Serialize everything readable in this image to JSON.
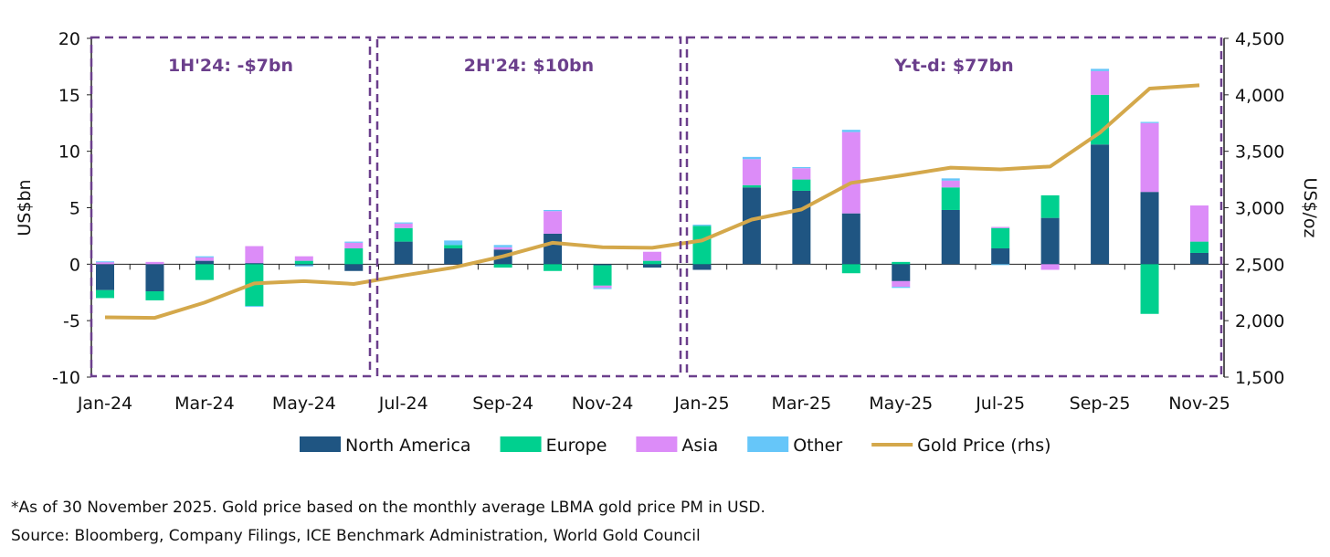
{
  "chart_data": {
    "type": "bar",
    "stacked": true,
    "categories": [
      "Jan-24",
      "Feb-24",
      "Mar-24",
      "Apr-24",
      "May-24",
      "Jun-24",
      "Jul-24",
      "Aug-24",
      "Sep-24",
      "Oct-24",
      "Nov-24",
      "Dec-24",
      "Jan-25",
      "Feb-25",
      "Mar-25",
      "Apr-25",
      "May-25",
      "Jun-25",
      "Jul-25",
      "Aug-25",
      "Sep-25",
      "Oct-25",
      "Nov-25"
    ],
    "x_tick_labels": [
      "Jan-24",
      "Mar-24",
      "May-24",
      "Jul-24",
      "Sep-24",
      "Nov-24",
      "Jan-25",
      "Mar-25",
      "May-25",
      "Jul-25",
      "Sep-25",
      "Nov-25"
    ],
    "series": [
      {
        "name": "North America",
        "color": "#1f5582",
        "values": [
          -2.3,
          -2.4,
          0.3,
          0.1,
          -0.1,
          -0.6,
          2.0,
          1.4,
          1.3,
          2.7,
          -0.1,
          -0.3,
          -0.5,
          6.8,
          6.5,
          4.5,
          -1.5,
          4.8,
          1.4,
          4.1,
          10.6,
          6.4,
          1.0
        ]
      },
      {
        "name": "Europe",
        "color": "#00d08f",
        "values": [
          -0.7,
          -0.8,
          -1.4,
          -3.7,
          0.3,
          1.4,
          1.2,
          0.3,
          -0.3,
          -0.6,
          -1.8,
          0.3,
          3.4,
          0.2,
          1.0,
          -0.8,
          0.2,
          2.0,
          1.8,
          2.0,
          4.4,
          -4.4,
          1.0
        ]
      },
      {
        "name": "Asia",
        "color": "#dc8cf8",
        "values": [
          0.2,
          0.2,
          0.3,
          1.5,
          0.4,
          0.5,
          0.4,
          0.0,
          0.2,
          2.0,
          -0.2,
          0.8,
          0.0,
          2.3,
          1.0,
          7.2,
          -0.5,
          0.6,
          0.1,
          -0.5,
          2.1,
          6.1,
          3.2
        ]
      },
      {
        "name": "Other",
        "color": "#66c6f9",
        "values": [
          0.05,
          0.0,
          0.1,
          -0.05,
          -0.1,
          0.1,
          0.1,
          0.4,
          0.2,
          0.1,
          -0.1,
          0.0,
          0.1,
          0.2,
          0.1,
          0.2,
          -0.1,
          0.2,
          -0.05,
          0.0,
          0.2,
          0.1,
          0.0
        ]
      }
    ],
    "line_series": {
      "name": "Gold Price (rhs)",
      "color": "#d4a84b",
      "axis": "right",
      "values": [
        2030,
        2025,
        2160,
        2330,
        2350,
        2325,
        2400,
        2470,
        2570,
        2690,
        2650,
        2645,
        2710,
        2895,
        2985,
        3220,
        3285,
        3355,
        3340,
        3365,
        3665,
        4055,
        4085
      ]
    },
    "ylabel": "US$bn",
    "ylim": [
      -10,
      20
    ],
    "y_ticks": [
      "20",
      "15",
      "10",
      "5",
      "0",
      "-5",
      "-10"
    ],
    "y2label": "US$/oz",
    "y2lim": [
      1500,
      4500
    ],
    "y2_ticks": [
      "4,500",
      "4,000",
      "3,500",
      "3,000",
      "2,500",
      "2,000",
      "1,500"
    ],
    "grid": false,
    "legend_position": "bottom",
    "annotations": [
      {
        "label": "1H'24: -$7bn",
        "from": "Jan-24",
        "to": "Jun-24"
      },
      {
        "label": "2H'24: $10bn",
        "from": "Jul-24",
        "to": "Dec-24"
      },
      {
        "label": "Y-t-d: $77bn",
        "from": "Jan-25",
        "to": "Nov-25"
      }
    ],
    "annotation_color": "#6b3f8c"
  },
  "footnote": "*As of 30 November 2025. Gold price based on the monthly average LBMA gold price PM in USD.",
  "source": "Source: Bloomberg, Company Filings, ICE Benchmark Administration, World Gold Council"
}
